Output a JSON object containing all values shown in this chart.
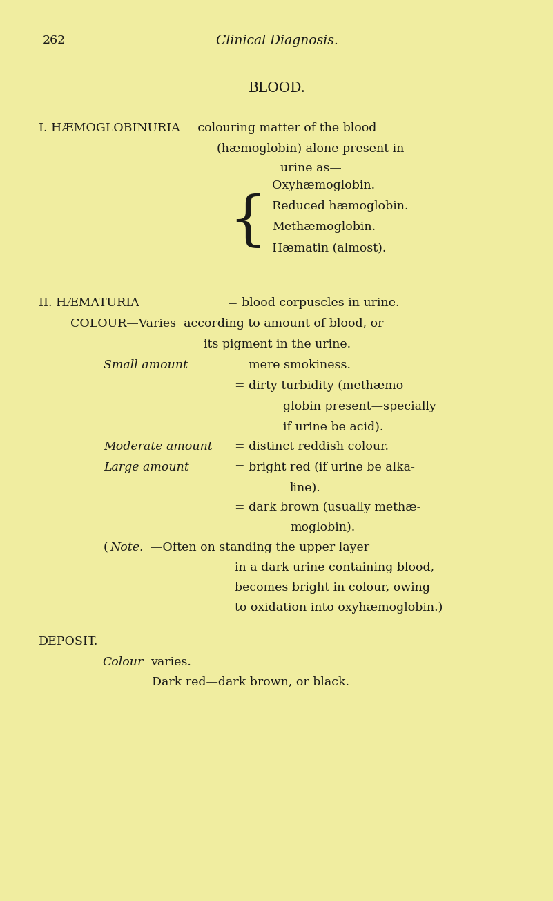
{
  "bg_color": "#f0eda0",
  "text_color": "#1a1a18",
  "page_number": "262",
  "header": "Clinical Diagnosis.",
  "title": "BLOOD.",
  "figsize": [
    8.01,
    13.04
  ],
  "dpi": 100
}
